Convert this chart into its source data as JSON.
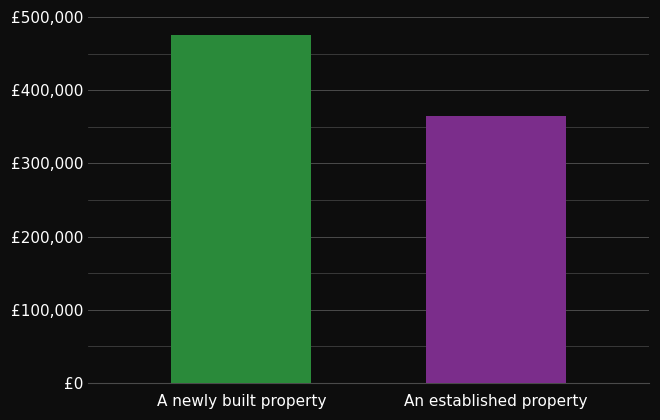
{
  "categories": [
    "A newly built property",
    "An established property"
  ],
  "values": [
    475000,
    365000
  ],
  "bar_colors": [
    "#2a8a3a",
    "#7b2d8b"
  ],
  "background_color": "#0d0d0d",
  "text_color": "#ffffff",
  "grid_color": "#4a4a4a",
  "ylim": [
    0,
    500000
  ],
  "yticks": [
    0,
    100000,
    200000,
    300000,
    400000,
    500000
  ],
  "ytick_labels": [
    "£0",
    "£100,000",
    "£200,000",
    "£300,000",
    "£400,000",
    "£500,000"
  ],
  "bar_width": 0.55,
  "tick_fontsize": 11,
  "label_fontsize": 11
}
